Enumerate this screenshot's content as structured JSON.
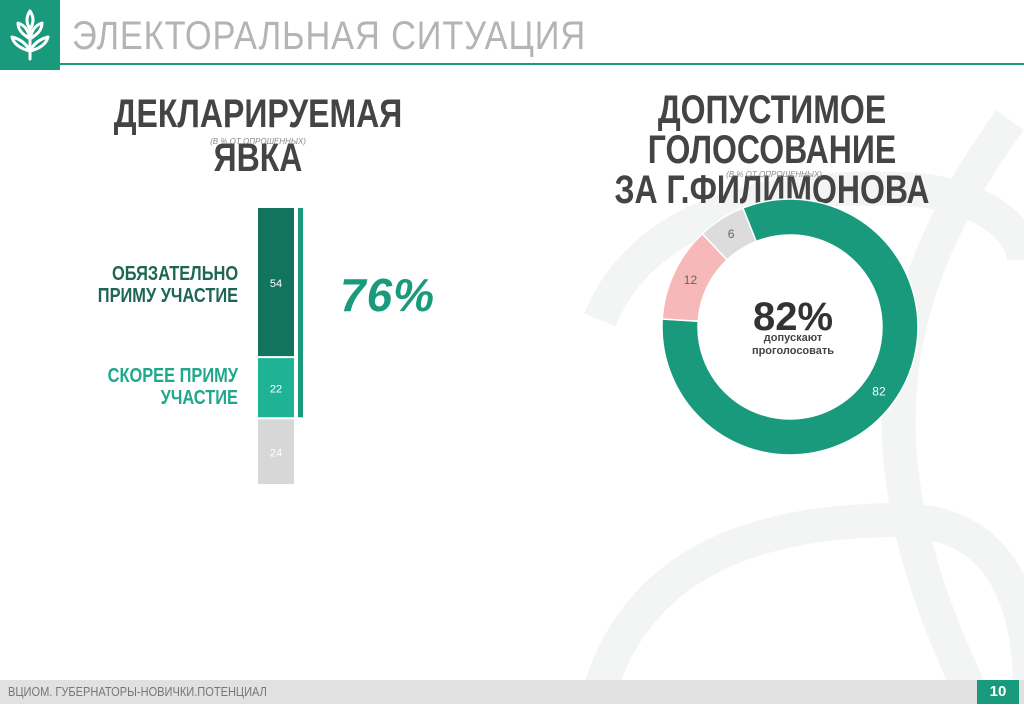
{
  "header": {
    "title": "ЭЛЕКТОРАЛЬНАЯ СИТУАЦИЯ",
    "accent_color": "#1a9a7c",
    "logo_icon": "tree-icon"
  },
  "footer": {
    "source": "ВЦИОМ. ГУБЕРНАТОРЫ-НОВИЧКИ.ПОТЕНЦИАЛ",
    "page_number": "10"
  },
  "chart_data": [
    {
      "type": "bar",
      "title": "ДЕКЛАРИРУЕМАЯ ЯВКА",
      "subtitle": "(В % ОТ ОПРОШЕННЫХ)",
      "stacked": true,
      "total": 100,
      "segments": [
        {
          "label": "ОБЯЗАТЕЛЬНО ПРИМУ УЧАСТИЕ",
          "value": 54,
          "color": "#12745d"
        },
        {
          "label": "СКОРЕЕ ПРИМУ УЧАСТИЕ",
          "value": 22,
          "color": "#1fb395"
        },
        {
          "label": "",
          "value": 24,
          "color": "#d7d7d7"
        }
      ],
      "labels": {
        "line1": [
          "ОБЯЗАТЕЛЬНО",
          "ПРИМУ УЧАСТИЕ"
        ],
        "line2": [
          "СКОРЕЕ ПРИМУ",
          "УЧАСТИЕ"
        ]
      },
      "bracket_total": "76%",
      "label_colors": [
        "#1e6654",
        "#1fa88b"
      ]
    },
    {
      "type": "pie",
      "donut": true,
      "title_lines": [
        "ДОПУСТИМОЕ ГОЛОСОВАНИЕ",
        "ЗА Г.ФИЛИМОНОВА"
      ],
      "subtitle": "(В % ОТ ОПРОШЕННЫХ)",
      "slices": [
        {
          "value": 82,
          "color": "#1a9a7c"
        },
        {
          "value": 12,
          "color": "#f6b8b8"
        },
        {
          "value": 6,
          "color": "#dcdcdc"
        }
      ],
      "center_value": "82%",
      "center_caption": [
        "допускают",
        "проголосовать"
      ]
    }
  ]
}
